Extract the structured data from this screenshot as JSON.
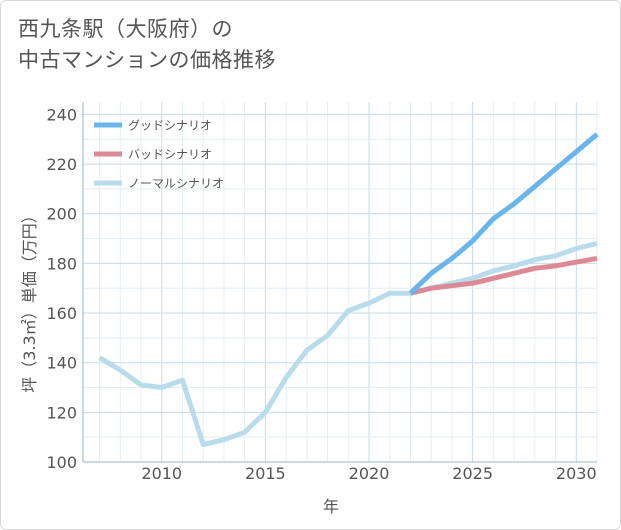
{
  "title_lines": [
    "西九条駅（大阪府）の",
    "中古マンションの価格推移"
  ],
  "chart_data": {
    "type": "line",
    "title": "西九条駅（大阪府）の中古マンションの価格推移",
    "xlabel": "年",
    "ylabel": "坪（3.3㎡）単価（万円）",
    "xlim": [
      2006.2,
      2031
    ],
    "ylim": [
      100,
      245
    ],
    "xticks": [
      2010,
      2015,
      2020,
      2025,
      2030
    ],
    "yticks": [
      100,
      120,
      140,
      160,
      180,
      200,
      220,
      240
    ],
    "grid": true,
    "legend_position": "top-left",
    "series": [
      {
        "name": "グッドシナリオ",
        "color": "#6ab6ec",
        "x": [
          2022,
          2023,
          2024,
          2025,
          2026,
          2027,
          2028,
          2029,
          2030,
          2031
        ],
        "values": [
          168,
          176,
          182,
          189,
          198,
          204,
          211,
          218,
          225,
          232
        ]
      },
      {
        "name": "バッドシナリオ",
        "color": "#de8a95",
        "x": [
          2022,
          2023,
          2024,
          2025,
          2026,
          2027,
          2028,
          2029,
          2030,
          2031
        ],
        "values": [
          168,
          170,
          171,
          172,
          174,
          176,
          178,
          179,
          180.5,
          182
        ]
      },
      {
        "name": "ノーマルシナリオ",
        "color": "#b9dcec",
        "x": [
          2007,
          2008,
          2009,
          2010,
          2011,
          2012,
          2013,
          2014,
          2015,
          2016,
          2017,
          2018,
          2019,
          2020,
          2021,
          2022,
          2023,
          2024,
          2025,
          2026,
          2027,
          2028,
          2029,
          2030,
          2031
        ],
        "values": [
          142,
          137,
          131,
          130,
          133,
          107,
          109,
          112,
          120,
          134,
          145,
          151,
          161,
          164,
          168,
          168,
          170,
          172,
          174,
          177,
          179,
          181.5,
          183,
          186,
          188
        ]
      }
    ]
  }
}
